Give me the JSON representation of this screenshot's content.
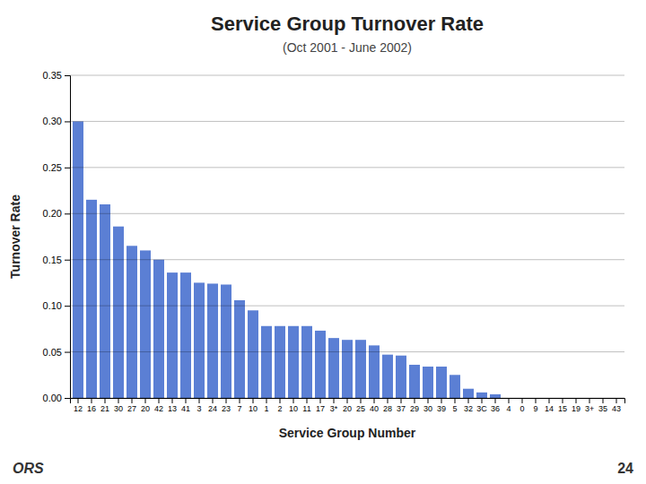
{
  "chart_data": {
    "type": "bar",
    "title": "Service Group Turnover Rate",
    "subtitle": "(Oct 2001 - June 2002)",
    "x_label": "Service Group Number",
    "y_label": "Turnover Rate",
    "annotations": [
      "ORS",
      "24"
    ],
    "categories": [
      "12",
      "16",
      "21",
      "30",
      "27",
      "20",
      "42",
      "13",
      "41",
      "3",
      "24",
      "23",
      "7",
      "10",
      "1",
      "2",
      "10",
      "11",
      "17",
      "3*",
      "20",
      "25",
      "40",
      "28",
      "37",
      "29",
      "30",
      "39",
      "5",
      "32",
      "3C",
      "36",
      "4",
      "0",
      "9",
      "14",
      "15",
      "19",
      "3+",
      "35",
      "43"
    ],
    "values": [
      0.3,
      0.215,
      0.21,
      0.186,
      0.165,
      0.16,
      0.15,
      0.136,
      0.136,
      0.125,
      0.124,
      0.123,
      0.106,
      0.095,
      0.078,
      0.078,
      0.078,
      0.078,
      0.073,
      0.065,
      0.063,
      0.063,
      0.057,
      0.047,
      0.046,
      0.036,
      0.034,
      0.034,
      0.025,
      0.01,
      0.006,
      0.004,
      0.0,
      0.0,
      0.0,
      0.0,
      0.0,
      0.0,
      0.0,
      0.0,
      0.0
    ],
    "color": "#5B7FD4",
    "ylim": [
      0,
      0.35
    ],
    "yticks": [
      {
        "value": 0.0,
        "label": "0.00"
      },
      {
        "value": 0.05,
        "label": "0.05"
      },
      {
        "value": 0.1,
        "label": "0.10"
      },
      {
        "value": 0.15,
        "label": "0.15"
      },
      {
        "value": 0.2,
        "label": "0.20"
      },
      {
        "value": 0.25,
        "label": "0.25"
      },
      {
        "value": 0.3,
        "label": "0.30"
      },
      {
        "value": 0.35,
        "label": "0.35"
      }
    ],
    "grid": true
  }
}
